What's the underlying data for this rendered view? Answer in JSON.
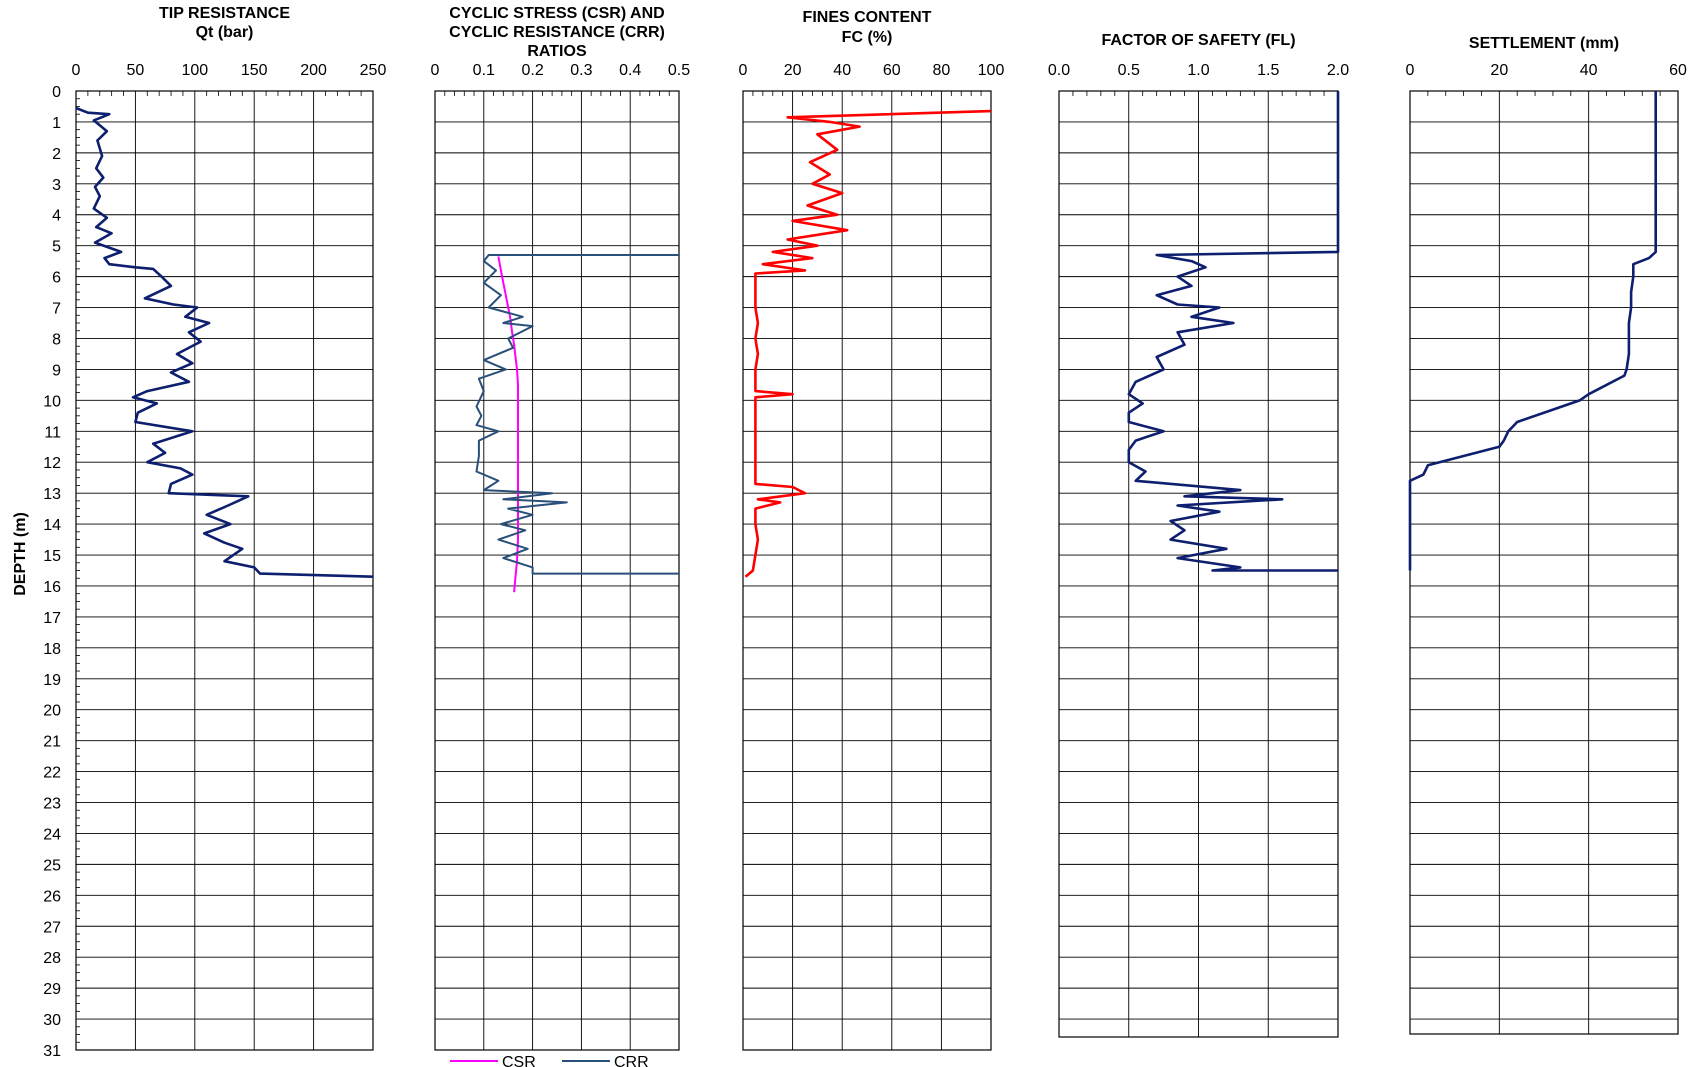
{
  "page": {
    "y_axis_label": "DEPTH (m)"
  },
  "colors": {
    "navy": "#0d1f6e",
    "crr": "#29507a",
    "csr": "#ff00ff",
    "fines": "#ff0000",
    "grid": "#000000"
  },
  "chart_data": [
    {
      "type": "line",
      "title_lines": [
        "TIP RESISTANCE",
        "Qt (bar)"
      ],
      "xlim": [
        0,
        250
      ],
      "x_ticks": [
        0,
        50,
        100,
        150,
        200,
        250
      ],
      "x_tick_labels": [
        "0",
        "50",
        "100",
        "150",
        "200",
        "250"
      ],
      "ylim": [
        0,
        31
      ],
      "ylabel": "DEPTH (m)",
      "series": [
        {
          "color": "#0d1f6e",
          "points": [
            [
              0,
              0.55
            ],
            [
              10,
              0.7
            ],
            [
              28,
              0.75
            ],
            [
              15,
              0.95
            ],
            [
              26,
              1.3
            ],
            [
              18,
              1.6
            ],
            [
              22,
              2.1
            ],
            [
              17,
              2.5
            ],
            [
              23,
              2.8
            ],
            [
              16,
              3.1
            ],
            [
              20,
              3.4
            ],
            [
              15,
              3.8
            ],
            [
              26,
              4.1
            ],
            [
              17,
              4.4
            ],
            [
              30,
              4.6
            ],
            [
              16,
              4.9
            ],
            [
              38,
              5.2
            ],
            [
              24,
              5.4
            ],
            [
              28,
              5.6
            ],
            [
              50,
              5.7
            ],
            [
              65,
              5.75
            ],
            [
              72,
              6.0
            ],
            [
              80,
              6.3
            ],
            [
              58,
              6.7
            ],
            [
              82,
              6.9
            ],
            [
              102,
              7.0
            ],
            [
              92,
              7.3
            ],
            [
              112,
              7.5
            ],
            [
              95,
              7.8
            ],
            [
              105,
              8.1
            ],
            [
              85,
              8.5
            ],
            [
              98,
              8.8
            ],
            [
              80,
              9.1
            ],
            [
              95,
              9.4
            ],
            [
              60,
              9.7
            ],
            [
              48,
              9.9
            ],
            [
              68,
              10.1
            ],
            [
              52,
              10.4
            ],
            [
              50,
              10.7
            ],
            [
              98,
              11.0
            ],
            [
              65,
              11.4
            ],
            [
              75,
              11.7
            ],
            [
              60,
              12.0
            ],
            [
              88,
              12.2
            ],
            [
              98,
              12.4
            ],
            [
              80,
              12.7
            ],
            [
              78,
              13.0
            ],
            [
              145,
              13.1
            ],
            [
              128,
              13.4
            ],
            [
              110,
              13.7
            ],
            [
              130,
              14.0
            ],
            [
              108,
              14.3
            ],
            [
              125,
              14.6
            ],
            [
              140,
              14.8
            ],
            [
              125,
              15.2
            ],
            [
              150,
              15.4
            ],
            [
              155,
              15.6
            ],
            [
              250,
              15.7
            ]
          ]
        }
      ]
    },
    {
      "type": "line",
      "title_lines": [
        "CYCLIC STRESS (CSR) AND",
        "CYCLIC RESISTANCE (CRR)",
        "RATIOS"
      ],
      "xlim": [
        0,
        0.5
      ],
      "x_ticks": [
        0,
        0.1,
        0.2,
        0.3,
        0.4,
        0.5
      ],
      "x_tick_labels": [
        "0",
        "0.1",
        "0.2",
        "0.3",
        "0.4",
        "0.5"
      ],
      "ylim": [
        0,
        31
      ],
      "legend": {
        "placement": "bottom"
      },
      "series": [
        {
          "name": "CSR",
          "color": "#ff00ff",
          "points": [
            [
              0.13,
              5.35
            ],
            [
              0.135,
              5.8
            ],
            [
              0.14,
              6.2
            ],
            [
              0.145,
              6.6
            ],
            [
              0.15,
              7.0
            ],
            [
              0.155,
              7.4
            ],
            [
              0.158,
              7.8
            ],
            [
              0.162,
              8.2
            ],
            [
              0.165,
              8.6
            ],
            [
              0.168,
              9.0
            ],
            [
              0.17,
              9.5
            ],
            [
              0.17,
              10.5
            ],
            [
              0.17,
              11.5
            ],
            [
              0.17,
              12.5
            ],
            [
              0.17,
              13.5
            ],
            [
              0.17,
              14.5
            ],
            [
              0.168,
              15.2
            ],
            [
              0.165,
              15.7
            ],
            [
              0.162,
              16.2
            ]
          ]
        },
        {
          "name": "CRR",
          "color": "#29507a",
          "points": [
            [
              0.5,
              5.3
            ],
            [
              0.11,
              5.3
            ],
            [
              0.1,
              5.5
            ],
            [
              0.125,
              5.8
            ],
            [
              0.1,
              6.2
            ],
            [
              0.135,
              6.6
            ],
            [
              0.11,
              7.0
            ],
            [
              0.18,
              7.3
            ],
            [
              0.14,
              7.5
            ],
            [
              0.2,
              7.6
            ],
            [
              0.15,
              8.0
            ],
            [
              0.16,
              8.3
            ],
            [
              0.1,
              8.7
            ],
            [
              0.145,
              9.0
            ],
            [
              0.09,
              9.3
            ],
            [
              0.1,
              9.7
            ],
            [
              0.085,
              10.2
            ],
            [
              0.095,
              10.5
            ],
            [
              0.085,
              10.8
            ],
            [
              0.13,
              11.0
            ],
            [
              0.09,
              11.3
            ],
            [
              0.09,
              11.8
            ],
            [
              0.085,
              12.3
            ],
            [
              0.13,
              12.6
            ],
            [
              0.1,
              12.9
            ],
            [
              0.24,
              13.0
            ],
            [
              0.14,
              13.2
            ],
            [
              0.27,
              13.3
            ],
            [
              0.15,
              13.5
            ],
            [
              0.2,
              13.7
            ],
            [
              0.135,
              14.0
            ],
            [
              0.185,
              14.2
            ],
            [
              0.13,
              14.5
            ],
            [
              0.19,
              14.8
            ],
            [
              0.14,
              15.1
            ],
            [
              0.2,
              15.4
            ],
            [
              0.2,
              15.6
            ],
            [
              0.5,
              15.6
            ]
          ]
        }
      ]
    },
    {
      "type": "line",
      "title_lines": [
        "FINES CONTENT",
        "FC (%)"
      ],
      "xlim": [
        0,
        100
      ],
      "x_ticks": [
        0,
        20,
        40,
        60,
        80,
        100
      ],
      "x_tick_labels": [
        "0",
        "20",
        "40",
        "60",
        "80",
        "100"
      ],
      "ylim": [
        0,
        31
      ],
      "series": [
        {
          "color": "#ff0000",
          "points": [
            [
              100,
              0.65
            ],
            [
              18,
              0.85
            ],
            [
              35,
              1.0
            ],
            [
              47,
              1.15
            ],
            [
              30,
              1.4
            ],
            [
              38,
              1.9
            ],
            [
              27,
              2.3
            ],
            [
              35,
              2.7
            ],
            [
              28,
              3.0
            ],
            [
              40,
              3.3
            ],
            [
              26,
              3.7
            ],
            [
              38,
              4.0
            ],
            [
              20,
              4.2
            ],
            [
              42,
              4.5
            ],
            [
              18,
              4.8
            ],
            [
              30,
              5.0
            ],
            [
              12,
              5.2
            ],
            [
              28,
              5.4
            ],
            [
              8,
              5.6
            ],
            [
              25,
              5.8
            ],
            [
              5,
              5.9
            ],
            [
              5,
              7.0
            ],
            [
              6,
              7.5
            ],
            [
              5,
              8.0
            ],
            [
              6,
              8.5
            ],
            [
              5,
              9.0
            ],
            [
              5,
              9.7
            ],
            [
              20,
              9.8
            ],
            [
              5,
              9.9
            ],
            [
              5,
              12.7
            ],
            [
              20,
              12.8
            ],
            [
              25,
              13.0
            ],
            [
              6,
              13.2
            ],
            [
              15,
              13.3
            ],
            [
              5,
              13.5
            ],
            [
              5,
              14.0
            ],
            [
              6,
              14.5
            ],
            [
              5,
              15.0
            ],
            [
              4,
              15.5
            ],
            [
              1,
              15.7
            ]
          ]
        }
      ]
    },
    {
      "type": "line",
      "title_lines": [
        "FACTOR OF SAFETY (FL)"
      ],
      "xlim": [
        0,
        2.0
      ],
      "x_ticks": [
        0,
        0.5,
        1.0,
        1.5,
        2.0
      ],
      "x_tick_labels": [
        "0.0",
        "0.5",
        "1.0",
        "1.5",
        "2.0"
      ],
      "ylim": [
        0,
        31
      ],
      "series": [
        {
          "color": "#0d1f6e",
          "points": [
            [
              2.0,
              0
            ],
            [
              2.0,
              5.2
            ],
            [
              0.7,
              5.3
            ],
            [
              0.95,
              5.5
            ],
            [
              1.05,
              5.7
            ],
            [
              0.85,
              6.0
            ],
            [
              0.95,
              6.3
            ],
            [
              0.7,
              6.6
            ],
            [
              0.85,
              6.9
            ],
            [
              1.15,
              7.0
            ],
            [
              0.95,
              7.3
            ],
            [
              1.25,
              7.5
            ],
            [
              0.85,
              7.8
            ],
            [
              0.9,
              8.2
            ],
            [
              0.7,
              8.6
            ],
            [
              0.75,
              9.0
            ],
            [
              0.55,
              9.4
            ],
            [
              0.5,
              9.8
            ],
            [
              0.6,
              10.1
            ],
            [
              0.5,
              10.4
            ],
            [
              0.5,
              10.7
            ],
            [
              0.75,
              11.0
            ],
            [
              0.55,
              11.3
            ],
            [
              0.5,
              11.6
            ],
            [
              0.5,
              12.0
            ],
            [
              0.62,
              12.3
            ],
            [
              0.55,
              12.6
            ],
            [
              1.3,
              12.9
            ],
            [
              0.9,
              13.1
            ],
            [
              1.6,
              13.2
            ],
            [
              0.85,
              13.4
            ],
            [
              1.15,
              13.6
            ],
            [
              0.8,
              13.9
            ],
            [
              0.9,
              14.2
            ],
            [
              0.8,
              14.5
            ],
            [
              1.2,
              14.8
            ],
            [
              0.85,
              15.1
            ],
            [
              1.3,
              15.4
            ],
            [
              1.1,
              15.5
            ],
            [
              2.0,
              15.5
            ]
          ]
        }
      ]
    },
    {
      "type": "line",
      "title_lines": [
        "SETTLEMENT (mm)"
      ],
      "xlim": [
        0,
        60
      ],
      "x_ticks": [
        0,
        20,
        40,
        60
      ],
      "x_tick_labels": [
        "0",
        "20",
        "40",
        "60"
      ],
      "ylim": [
        0,
        31
      ],
      "series": [
        {
          "color": "#0d1f6e",
          "points": [
            [
              55,
              0
            ],
            [
              55,
              5.2
            ],
            [
              53.5,
              5.4
            ],
            [
              50,
              5.6
            ],
            [
              50,
              6.0
            ],
            [
              49.5,
              6.5
            ],
            [
              49.5,
              7.0
            ],
            [
              49,
              7.5
            ],
            [
              49,
              8.0
            ],
            [
              49,
              8.5
            ],
            [
              48.5,
              9.0
            ],
            [
              48,
              9.2
            ],
            [
              40,
              9.8
            ],
            [
              38,
              10.0
            ],
            [
              24,
              10.7
            ],
            [
              22,
              11.0
            ],
            [
              21,
              11.3
            ],
            [
              20,
              11.5
            ],
            [
              12,
              11.8
            ],
            [
              4,
              12.1
            ],
            [
              3,
              12.4
            ],
            [
              0,
              12.6
            ],
            [
              0,
              15.5
            ]
          ]
        }
      ]
    }
  ]
}
